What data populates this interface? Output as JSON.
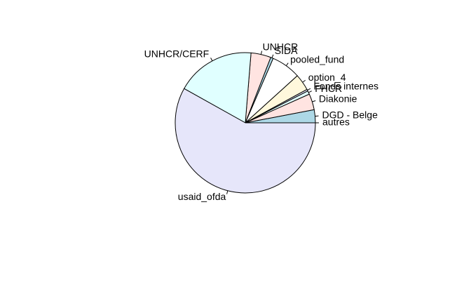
{
  "chart_data": {
    "type": "pie",
    "title": "",
    "slices": [
      {
        "label": "DGD - Belge",
        "value": 3.0,
        "color": "#ADD8E6"
      },
      {
        "label": "Diakonie",
        "value": 3.7,
        "color": "#FFE4E1"
      },
      {
        "label": "FHCR",
        "value": 0.8,
        "color": "#E0FFFF"
      },
      {
        "label": "Fonds internes",
        "value": 0.4,
        "color": "#E6E6FA"
      },
      {
        "label": "option_4",
        "value": 3.8,
        "color": "#FFF8DC"
      },
      {
        "label": "pooled_fund",
        "value": 6.8,
        "color": "#FFFFFF"
      },
      {
        "label": "SIDA",
        "value": 0.6,
        "color": "#ADD8E6"
      },
      {
        "label": "UNHCR",
        "value": 4.6,
        "color": "#FFE4E1"
      },
      {
        "label": "UNHCR/CERF",
        "value": 18.2,
        "color": "#E0FFFF"
      },
      {
        "label": "usaid_ofda",
        "value": 58.1,
        "color": "#E6E6FA"
      },
      {
        "label": "autres",
        "value": 0.0,
        "color": "#FFF8DC"
      }
    ],
    "start_angle_deg": 0,
    "direction": "counterclockwise",
    "legend": "none"
  }
}
